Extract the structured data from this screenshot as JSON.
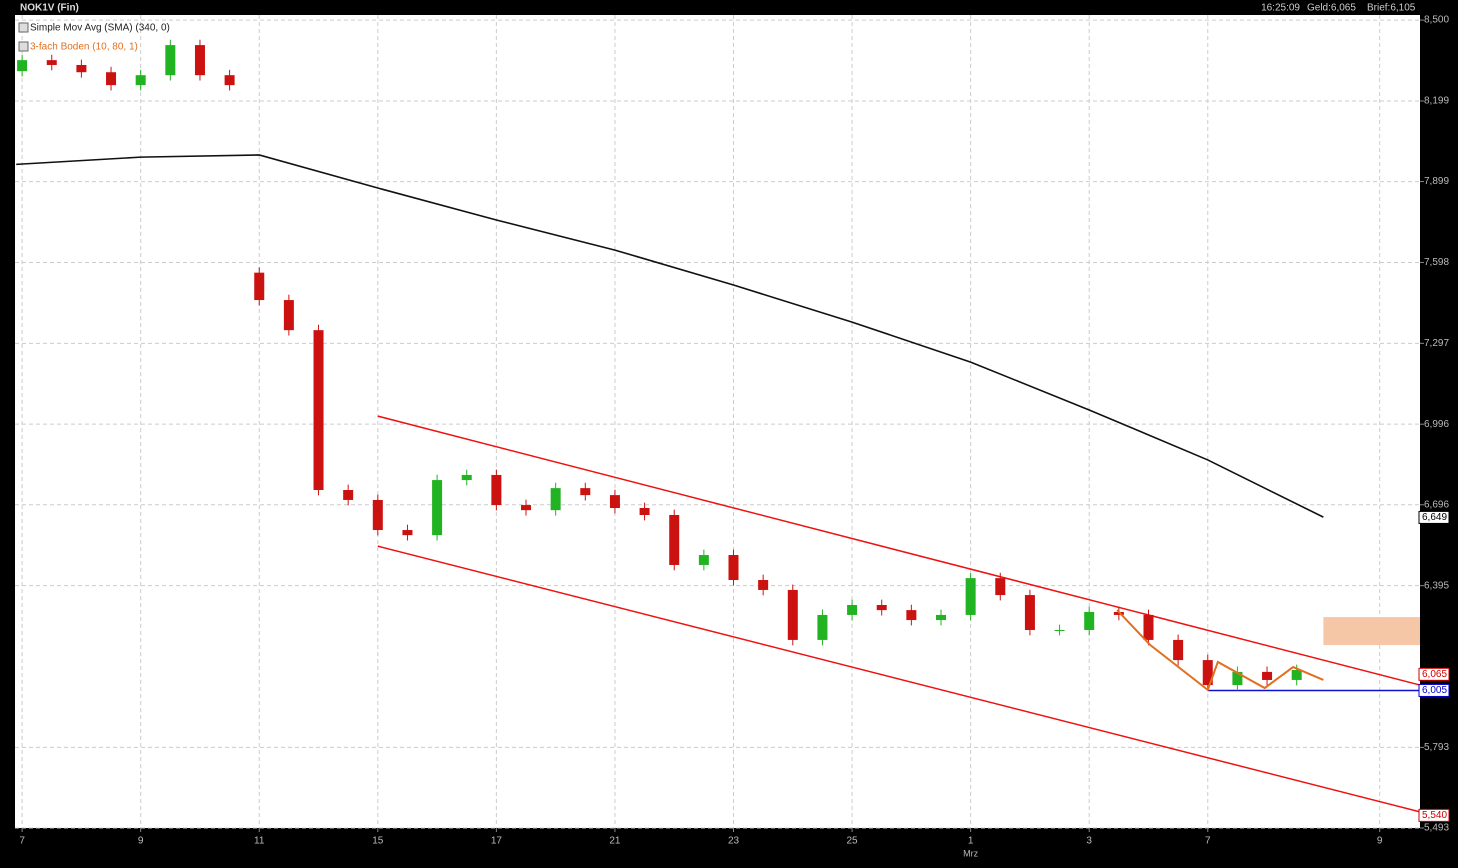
{
  "chart_data": {
    "type": "candlestick",
    "title": "NOK1V (Fin)",
    "header": {
      "time": "16:25:09",
      "bid": "Geld:6,065",
      "ask": "Brief:6,105"
    },
    "xlim": [
      -0.12,
      23.58
    ],
    "ylim": [
      5493,
      8519
    ],
    "xticks": [
      {
        "value": 0,
        "label": "7"
      },
      {
        "value": 2,
        "label": "9"
      },
      {
        "value": 4,
        "label": "11"
      },
      {
        "value": 6,
        "label": "15"
      },
      {
        "value": 8,
        "label": "17"
      },
      {
        "value": 10,
        "label": "21"
      },
      {
        "value": 12,
        "label": "23"
      },
      {
        "value": 14,
        "label": "25"
      },
      {
        "value": 16,
        "label": "1"
      },
      {
        "value": 18,
        "label": "3"
      },
      {
        "value": 20,
        "label": "7"
      },
      {
        "value": 22.9,
        "label": "9"
      }
    ],
    "month_label": {
      "value": 16,
      "label": "Mrz"
    },
    "yticks": [
      {
        "value": 8500,
        "label": "8,500"
      },
      {
        "value": 8199,
        "label": "8,199"
      },
      {
        "value": 7899,
        "label": "7,899"
      },
      {
        "value": 7598,
        "label": "7,598"
      },
      {
        "value": 7297,
        "label": "7,297"
      },
      {
        "value": 6996,
        "label": "6,996"
      },
      {
        "value": 6696,
        "label": "6,696"
      },
      {
        "value": 6395,
        "label": "6,395"
      },
      {
        "value": 5793,
        "label": "5,793"
      },
      {
        "value": 5493,
        "label": "5,493"
      }
    ],
    "grid": true,
    "up_color": "#22b322",
    "down_color": "#cc1111",
    "candles": {
      "x": [
        0,
        0.5,
        1,
        1.5,
        2,
        2.5,
        3,
        3.5,
        4,
        4.5,
        5,
        5.5,
        6,
        6.5,
        7,
        7.5,
        8,
        8.5,
        9,
        9.5,
        10,
        10.5,
        11,
        11.5,
        12,
        12.5,
        13,
        13.5,
        14,
        14.5,
        15,
        15.5,
        16,
        16.5,
        17,
        17.5,
        18,
        18.5,
        19,
        19.5,
        20,
        20.5,
        21,
        21.5
      ],
      "open": [
        8310,
        8351,
        8333,
        8306,
        8258,
        8295,
        8407,
        8295,
        7560,
        7458,
        7346,
        6751,
        6714,
        6602,
        6583,
        6788,
        6807,
        6695,
        6676,
        6758,
        6732,
        6684,
        6658,
        6472,
        6509,
        6416,
        6379,
        6193,
        6286,
        6323,
        6304,
        6267,
        6286,
        6423,
        6360,
        6230,
        6230,
        6297,
        6286,
        6193,
        6118,
        6025,
        6074,
        6044
      ],
      "high": [
        8371,
        8371,
        8353,
        8326,
        8315,
        8427,
        8427,
        8315,
        7580,
        7478,
        7366,
        6771,
        6734,
        6622,
        6808,
        6827,
        6827,
        6715,
        6778,
        6778,
        6752,
        6704,
        6678,
        6529,
        6529,
        6436,
        6399,
        6306,
        6343,
        6343,
        6324,
        6306,
        6443,
        6443,
        6380,
        6250,
        6317,
        6317,
        6306,
        6213,
        6138,
        6094,
        6094,
        6101
      ],
      "low": [
        8290,
        8313,
        8286,
        8238,
        8238,
        8275,
        8275,
        8238,
        7438,
        7326,
        6731,
        6694,
        6582,
        6563,
        6563,
        6768,
        6675,
        6656,
        6656,
        6712,
        6664,
        6638,
        6452,
        6452,
        6396,
        6359,
        6173,
        6173,
        6266,
        6284,
        6247,
        6247,
        6266,
        6340,
        6210,
        6210,
        6210,
        6266,
        6173,
        6098,
        6005,
        6005,
        6024,
        6024
      ],
      "close": [
        8351,
        8333,
        8306,
        8258,
        8295,
        8407,
        8295,
        8258,
        7458,
        7346,
        6751,
        6714,
        6602,
        6583,
        6788,
        6807,
        6695,
        6676,
        6758,
        6732,
        6684,
        6658,
        6472,
        6509,
        6416,
        6379,
        6193,
        6286,
        6323,
        6304,
        6267,
        6286,
        6423,
        6360,
        6230,
        6230,
        6297,
        6286,
        6193,
        6118,
        6025,
        6074,
        6044,
        6081
      ]
    },
    "series": [
      {
        "name": "Simple Mov Avg (SMA) (340, 0)",
        "color": "#111111",
        "x": [
          -0.1,
          2,
          4,
          6,
          8,
          10,
          12,
          14,
          16,
          18,
          20,
          21.95
        ],
        "values": [
          7963,
          7990,
          7998,
          7875,
          7756,
          7644,
          7514,
          7376,
          7227,
          7049,
          6863,
          6650
        ]
      },
      {
        "name": "3-fach Boden (10, 80, 1)",
        "color": "#e07020",
        "x": [
          18.47,
          19.03,
          20,
          20.17,
          20.96,
          21.44,
          21.95
        ],
        "values": [
          6304,
          6174,
          6007,
          6111,
          6014,
          6092,
          6044
        ]
      }
    ],
    "trend_lines": [
      {
        "color": "#ee1111",
        "x": [
          6,
          23.58
        ],
        "values": [
          7026,
          6025
        ]
      },
      {
        "color": "#ee1111",
        "x": [
          6,
          23.58
        ],
        "values": [
          6542,
          5553
        ]
      },
      {
        "color": "#1010cc",
        "x": [
          20,
          23.58
        ],
        "values": [
          6005,
          6005
        ]
      }
    ],
    "zone": {
      "color": "#f6c7a6",
      "x": [
        21.95,
        23.58
      ],
      "values": [
        6174,
        6278
      ]
    },
    "price_markers": [
      {
        "value": 6649,
        "label": "6,649",
        "color": "#000000"
      },
      {
        "value": 6065,
        "label": "6,065",
        "color": "#cc0000"
      },
      {
        "value": 6005,
        "label": "6,005",
        "color": "#0000cc"
      },
      {
        "value": 5540,
        "label": "5,540",
        "color": "#cc0000"
      }
    ]
  }
}
